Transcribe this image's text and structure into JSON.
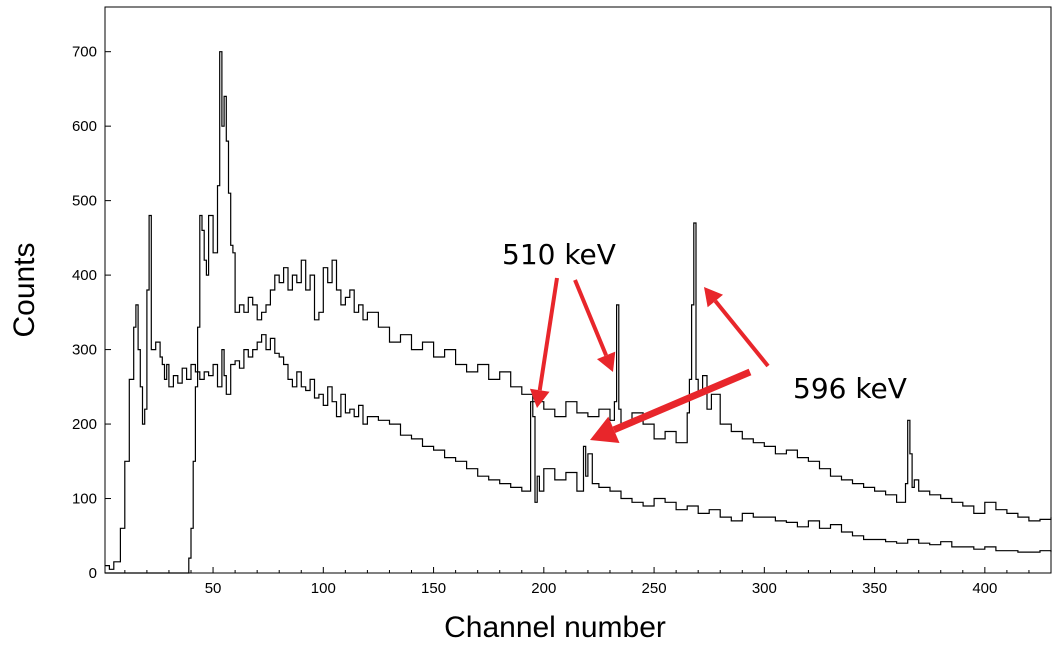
{
  "chart_data": {
    "type": "line",
    "title": "",
    "xlabel": "Channel number",
    "ylabel": "Counts",
    "xlim": [
      1,
      430
    ],
    "ylim": [
      0,
      760
    ],
    "x_ticks": [
      50,
      100,
      150,
      200,
      250,
      300,
      350,
      400
    ],
    "y_ticks": [
      0,
      100,
      200,
      300,
      400,
      500,
      600,
      700
    ],
    "grid": false,
    "legend": "none",
    "line_color": "#000000",
    "arrow_color": "#e8262b",
    "series": [
      {
        "x": [
          1,
          3,
          5,
          8,
          10,
          12,
          14,
          15,
          16,
          17,
          18,
          19,
          20,
          21,
          22,
          24,
          26,
          27,
          28,
          29,
          30,
          32,
          34,
          36,
          38,
          40,
          42,
          44,
          46,
          48,
          50,
          52,
          54,
          55,
          56,
          58,
          60,
          62,
          64,
          66,
          68,
          70,
          72,
          74,
          76,
          78,
          80,
          82,
          84,
          86,
          88,
          90,
          92,
          94,
          96,
          98,
          100,
          102,
          104,
          106,
          108,
          110,
          112,
          114,
          116,
          118,
          120,
          125,
          130,
          135,
          140,
          145,
          150,
          155,
          160,
          165,
          170,
          175,
          180,
          185,
          190,
          194,
          195,
          196,
          197,
          198,
          200,
          205,
          210,
          215,
          218,
          219,
          220,
          222,
          225,
          230,
          235,
          240,
          245,
          250,
          255,
          260,
          265,
          270,
          275,
          280,
          285,
          290,
          295,
          300,
          305,
          310,
          315,
          320,
          325,
          330,
          335,
          340,
          345,
          350,
          355,
          360,
          365,
          370,
          375,
          380,
          385,
          390,
          395,
          400,
          405,
          410,
          415,
          420,
          425,
          430
        ],
        "values": [
          10,
          5,
          15,
          60,
          150,
          260,
          330,
          360,
          300,
          250,
          200,
          220,
          380,
          480,
          300,
          310,
          290,
          280,
          260,
          280,
          250,
          265,
          255,
          275,
          260,
          280,
          270,
          260,
          270,
          265,
          280,
          250,
          300,
          265,
          240,
          280,
          285,
          275,
          300,
          290,
          300,
          310,
          320,
          300,
          315,
          295,
          290,
          280,
          260,
          250,
          270,
          250,
          245,
          260,
          235,
          240,
          225,
          250,
          230,
          210,
          240,
          215,
          220,
          210,
          225,
          200,
          210,
          205,
          200,
          185,
          180,
          170,
          165,
          155,
          150,
          140,
          130,
          125,
          120,
          115,
          110,
          230,
          210,
          95,
          130,
          110,
          140,
          125,
          135,
          110,
          170,
          130,
          160,
          120,
          115,
          110,
          100,
          95,
          90,
          100,
          95,
          85,
          90,
          80,
          85,
          75,
          70,
          80,
          75,
          75,
          70,
          68,
          62,
          70,
          60,
          65,
          55,
          50,
          45,
          45,
          42,
          40,
          45,
          40,
          38,
          42,
          35,
          35,
          32,
          35,
          30,
          30,
          28,
          28,
          30,
          28
        ]
      },
      {
        "x": [
          1,
          20,
          30,
          38,
          39,
          40,
          41,
          42,
          43,
          44,
          45,
          46,
          47,
          48,
          50,
          52,
          53,
          54,
          55,
          56,
          57,
          58,
          59,
          60,
          62,
          64,
          66,
          68,
          70,
          72,
          74,
          76,
          78,
          80,
          82,
          84,
          86,
          88,
          90,
          92,
          94,
          96,
          98,
          100,
          102,
          104,
          106,
          108,
          110,
          112,
          114,
          116,
          118,
          120,
          125,
          130,
          135,
          140,
          145,
          150,
          155,
          160,
          165,
          170,
          175,
          180,
          185,
          190,
          195,
          200,
          205,
          210,
          215,
          220,
          225,
          230,
          232,
          233,
          234,
          235,
          240,
          245,
          250,
          255,
          260,
          265,
          266,
          267,
          268,
          269,
          270,
          272,
          274,
          276,
          280,
          285,
          290,
          295,
          300,
          305,
          310,
          315,
          320,
          325,
          330,
          335,
          340,
          345,
          350,
          355,
          360,
          364,
          365,
          366,
          367,
          368,
          370,
          375,
          380,
          385,
          390,
          395,
          400,
          405,
          410,
          415,
          420,
          425,
          430
        ],
        "values": [
          0,
          0,
          0,
          0,
          20,
          60,
          150,
          250,
          330,
          480,
          460,
          420,
          400,
          480,
          430,
          520,
          700,
          600,
          640,
          580,
          510,
          440,
          430,
          350,
          360,
          350,
          370,
          360,
          340,
          350,
          360,
          380,
          400,
          390,
          410,
          380,
          400,
          390,
          420,
          380,
          400,
          340,
          350,
          410,
          390,
          420,
          380,
          360,
          370,
          380,
          350,
          360,
          340,
          350,
          330,
          310,
          320,
          300,
          310,
          290,
          300,
          280,
          270,
          280,
          260,
          270,
          250,
          240,
          230,
          220,
          210,
          230,
          215,
          210,
          220,
          205,
          230,
          360,
          220,
          200,
          215,
          200,
          180,
          190,
          175,
          215,
          260,
          360,
          470,
          260,
          240,
          265,
          220,
          240,
          200,
          190,
          180,
          175,
          170,
          160,
          165,
          155,
          150,
          140,
          130,
          125,
          120,
          115,
          110,
          105,
          95,
          120,
          205,
          160,
          115,
          125,
          110,
          105,
          100,
          95,
          90,
          80,
          95,
          85,
          80,
          75,
          70,
          72,
          75
        ]
      }
    ],
    "annotations": [
      {
        "text": "510 keV"
      },
      {
        "text": "596 keV"
      }
    ]
  }
}
